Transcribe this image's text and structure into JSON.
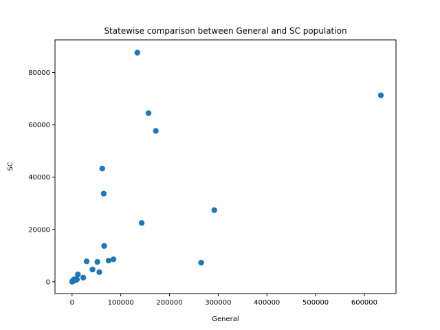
{
  "chart_data": {
    "type": "scatter",
    "title": "Statewise comparison between General and SC population",
    "xlabel": "General",
    "ylabel": "SC",
    "xlim": [
      -35000,
      665000
    ],
    "ylim": [
      -4500,
      92500
    ],
    "xticks": [
      0,
      100000,
      200000,
      300000,
      400000,
      500000,
      600000
    ],
    "yticks": [
      0,
      20000,
      40000,
      60000,
      80000
    ],
    "grid": false,
    "marker_color": "#1f77b4",
    "points": [
      [
        134000,
        87600
      ],
      [
        634000,
        71300
      ],
      [
        157000,
        64500
      ],
      [
        172000,
        57700
      ],
      [
        62000,
        43300
      ],
      [
        65000,
        33700
      ],
      [
        292000,
        27400
      ],
      [
        143000,
        22500
      ],
      [
        66000,
        13700
      ],
      [
        85000,
        8600
      ],
      [
        75000,
        8100
      ],
      [
        30000,
        7800
      ],
      [
        52000,
        7600
      ],
      [
        265000,
        7300
      ],
      [
        42000,
        4700
      ],
      [
        56000,
        3700
      ],
      [
        12000,
        2800
      ],
      [
        23000,
        1600
      ],
      [
        9000,
        1100
      ],
      [
        6000,
        700
      ],
      [
        3000,
        400
      ],
      [
        1500,
        200
      ],
      [
        500,
        100
      ],
      [
        200,
        30
      ],
      [
        4000,
        900
      ],
      [
        2000,
        500
      ],
      [
        800,
        150
      ],
      [
        7000,
        600
      ],
      [
        10000,
        900
      ],
      [
        1000,
        300
      ]
    ]
  }
}
